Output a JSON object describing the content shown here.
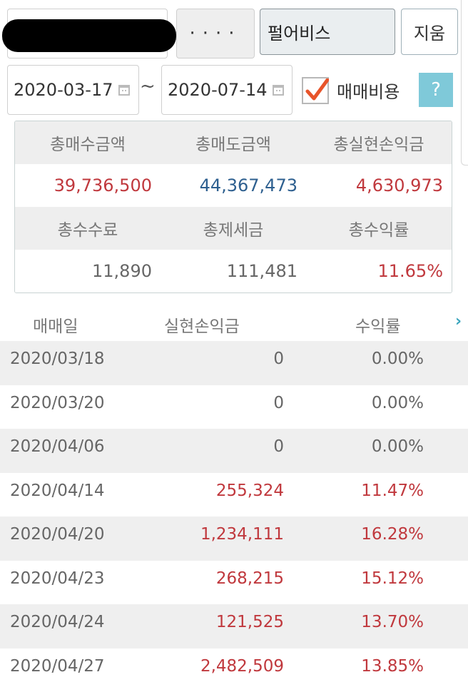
{
  "form": {
    "password_masked": "····",
    "stock_name": "펄어비스",
    "clear_label": "지움",
    "start_date": "2020-03-17",
    "end_date": "2020-07-14",
    "range_separator": "~",
    "fee_checkbox_label": "매매비용",
    "fee_checked": true,
    "help_label": "?"
  },
  "summary": {
    "headers_row1": [
      "총매수금액",
      "총매도금액",
      "총실현손익금"
    ],
    "values_row1": [
      "39,736,500",
      "44,367,473",
      "4,630,973"
    ],
    "headers_row2": [
      "총수수료",
      "총제세금",
      "총수익률"
    ],
    "values_row2": [
      "11,890",
      "111,481",
      "11.65%"
    ]
  },
  "table": {
    "columns": [
      "매매일",
      "실현손익금",
      "수익률"
    ],
    "rows": [
      {
        "date": "2020/03/18",
        "amount": "0",
        "rate": "0.00%"
      },
      {
        "date": "2020/03/20",
        "amount": "0",
        "rate": "0.00%"
      },
      {
        "date": "2020/04/06",
        "amount": "0",
        "rate": "0.00%"
      },
      {
        "date": "2020/04/14",
        "amount": "255,324",
        "rate": "11.47%"
      },
      {
        "date": "2020/04/20",
        "amount": "1,234,111",
        "rate": "16.28%"
      },
      {
        "date": "2020/04/23",
        "amount": "268,215",
        "rate": "15.12%"
      },
      {
        "date": "2020/04/24",
        "amount": "121,525",
        "rate": "13.70%"
      },
      {
        "date": "2020/04/27",
        "amount": "2,482,509",
        "rate": "13.85%"
      }
    ]
  },
  "colors": {
    "profit": "#c0383d",
    "sell_total": "#2d5f8f",
    "accent": "#7fc9d9",
    "check": "#e8542a"
  }
}
